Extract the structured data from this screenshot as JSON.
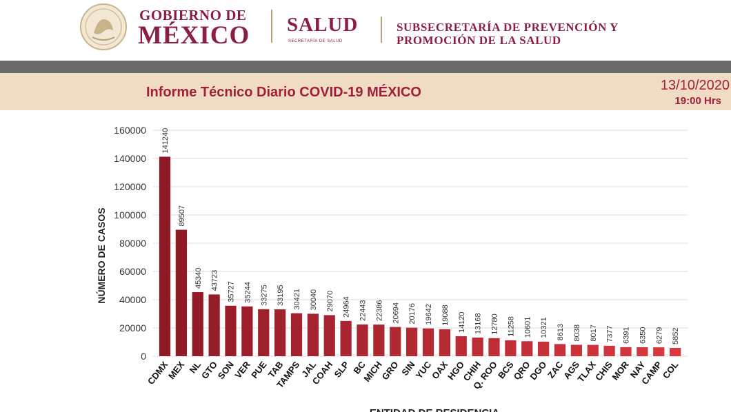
{
  "header": {
    "gobierno_line1": "GOBIERNO DE",
    "gobierno_line2": "MÉXICO",
    "salud": "SALUD",
    "salud_sub": "SECRETARÍA DE SALUD",
    "subsecretaria_line1": "SUBSECRETARÍA DE PREVENCIÓN Y",
    "subsecretaria_line2": "PROMOCIÓN DE LA SALUD"
  },
  "report": {
    "title": "Informe Técnico Diario COVID-19 MÉXICO",
    "date": "13/10/2020",
    "time": "19:00 Hrs"
  },
  "colors": {
    "brand": "#8b1f3f",
    "band": "#efdcc2",
    "bar_dark": "#8e1a26",
    "bar_light": "#d9383f"
  },
  "chart_data": {
    "type": "bar",
    "xlabel": "ENTIDAD DE RESIDENCIA",
    "ylabel": "NÚMERO DE CASOS",
    "ylim": [
      0,
      160000
    ],
    "yticks": [
      0,
      20000,
      40000,
      60000,
      80000,
      100000,
      120000,
      140000,
      160000
    ],
    "grid": true,
    "categories": [
      "CDMX",
      "MEX",
      "NL",
      "GTO",
      "SON",
      "VER",
      "PUE",
      "TAB",
      "TAMPS",
      "JAL",
      "COAH",
      "SLP",
      "BC",
      "MICH",
      "GRO",
      "SIN",
      "YUC",
      "OAX",
      "HGO",
      "CHIH",
      "Q. ROO",
      "BCS",
      "QRO",
      "DGO",
      "ZAC",
      "AGS",
      "TLAX",
      "CHIS",
      "MOR",
      "NAY",
      "CAMP",
      "COL"
    ],
    "values": [
      141240,
      89507,
      45340,
      43723,
      35727,
      35244,
      33275,
      33195,
      30421,
      30040,
      29070,
      24964,
      22443,
      22386,
      20694,
      20176,
      19642,
      19088,
      14120,
      13168,
      12780,
      11258,
      10601,
      10321,
      8613,
      8038,
      8017,
      7377,
      6391,
      6350,
      6279,
      5852
    ]
  }
}
